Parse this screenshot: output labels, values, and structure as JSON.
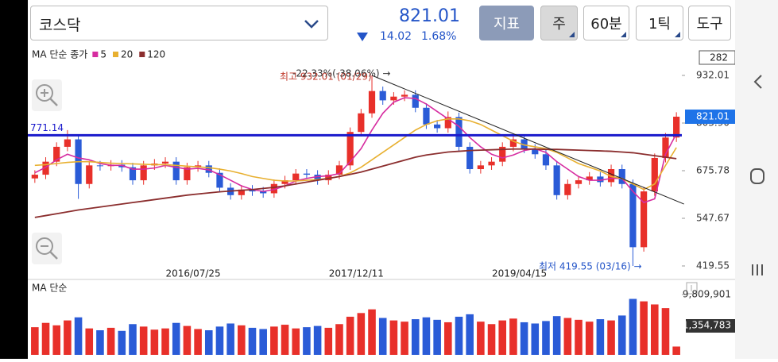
{
  "header": {
    "market": "코스닥",
    "price": 821.01,
    "change": 14.02,
    "change_rate": "1.68%",
    "buttons": [
      "지표",
      "주",
      "60분",
      "1틱",
      "도구"
    ]
  },
  "chart_data": [
    {
      "type": "candlestick",
      "legend_title": "MA 단순 종가",
      "period_count": 282,
      "up_color": "#e8302a",
      "down_color": "#2a5bd7",
      "categories": [
        null,
        null,
        null,
        null,
        null,
        null,
        null,
        null,
        null,
        null,
        null,
        null,
        null,
        null,
        null,
        "2016/07/25",
        null,
        null,
        null,
        null,
        null,
        null,
        null,
        null,
        null,
        null,
        null,
        null,
        null,
        null,
        "2017/12/11",
        null,
        null,
        null,
        null,
        null,
        null,
        null,
        null,
        null,
        null,
        null,
        null,
        null,
        null,
        "2019/04/15",
        null,
        null,
        null,
        null,
        null,
        null,
        null,
        null,
        null,
        null,
        null,
        null,
        null,
        null
      ],
      "open": [
        655,
        665,
        700,
        740,
        760,
        640,
        690,
        688,
        692,
        685,
        650,
        690,
        695,
        700,
        650,
        685,
        690,
        670,
        630,
        610,
        625,
        620,
        615,
        640,
        650,
        668,
        665,
        650,
        665,
        690,
        780,
        830,
        890,
        865,
        875,
        880,
        845,
        800,
        790,
        820,
        740,
        680,
        690,
        700,
        740,
        760,
        735,
        720,
        690,
        610,
        640,
        650,
        660,
        645,
        680,
        640,
        470,
        620,
        710,
        765
      ],
      "high": [
        677,
        712,
        752,
        785,
        772,
        702,
        702,
        704,
        704,
        697,
        702,
        707,
        712,
        712,
        697,
        702,
        702,
        682,
        642,
        637,
        637,
        632,
        652,
        662,
        680,
        680,
        677,
        677,
        702,
        792,
        842,
        932.01,
        902,
        887,
        892,
        892,
        857,
        812,
        835,
        832,
        752,
        702,
        712,
        752,
        772,
        772,
        747,
        732,
        702,
        652,
        662,
        672,
        672,
        692,
        692,
        652,
        632,
        722,
        777,
        833
      ],
      "low": [
        643,
        653,
        688,
        728,
        600,
        628,
        676,
        676,
        673,
        638,
        638,
        678,
        683,
        638,
        638,
        673,
        658,
        618,
        598,
        598,
        608,
        603,
        603,
        628,
        638,
        653,
        638,
        638,
        653,
        678,
        768,
        818,
        853,
        853,
        863,
        833,
        788,
        778,
        778,
        728,
        668,
        668,
        678,
        688,
        728,
        723,
        708,
        678,
        598,
        598,
        628,
        638,
        633,
        633,
        628,
        419.55,
        458,
        608,
        698,
        753
      ],
      "close": [
        665,
        700,
        740,
        760,
        640,
        690,
        688,
        692,
        685,
        650,
        690,
        695,
        700,
        650,
        685,
        690,
        670,
        630,
        610,
        625,
        620,
        615,
        640,
        650,
        668,
        665,
        650,
        665,
        690,
        780,
        830,
        890,
        865,
        875,
        880,
        845,
        800,
        790,
        820,
        740,
        680,
        690,
        700,
        740,
        760,
        735,
        720,
        690,
        610,
        640,
        650,
        660,
        645,
        680,
        640,
        470,
        620,
        710,
        765,
        821.01
      ],
      "series": [
        {
          "name": "5",
          "color": "#d62ca0",
          "values": [
            670,
            685,
            705,
            720,
            710,
            705,
            695,
            690,
            690,
            680,
            680,
            683,
            690,
            685,
            680,
            682,
            678,
            665,
            650,
            635,
            625,
            620,
            625,
            635,
            648,
            655,
            660,
            662,
            668,
            700,
            735,
            785,
            830,
            860,
            872,
            870,
            855,
            835,
            815,
            795,
            765,
            740,
            720,
            710,
            718,
            730,
            735,
            725,
            700,
            680,
            660,
            650,
            650,
            655,
            655,
            620,
            590,
            600,
            720,
            775
          ]
        },
        {
          "name": "20",
          "color": "#e8b030",
          "values": [
            690,
            692,
            695,
            698,
            700,
            700,
            698,
            696,
            695,
            694,
            693,
            692,
            692,
            690,
            688,
            686,
            684,
            680,
            675,
            668,
            660,
            655,
            650,
            648,
            648,
            650,
            652,
            655,
            660,
            670,
            685,
            705,
            725,
            745,
            765,
            785,
            800,
            810,
            815,
            815,
            810,
            800,
            785,
            770,
            755,
            745,
            740,
            735,
            725,
            710,
            695,
            685,
            675,
            660,
            655,
            640,
            625,
            640,
            690,
            738
          ]
        },
        {
          "name": "120",
          "color": "#8b2e2e",
          "values": [
            550,
            555,
            560,
            565,
            570,
            574,
            578,
            582,
            586,
            590,
            594,
            598,
            602,
            606,
            610,
            613,
            616,
            619,
            621,
            623,
            625,
            628,
            631,
            635,
            640,
            645,
            650,
            655,
            660,
            666,
            672,
            680,
            688,
            696,
            704,
            712,
            718,
            722,
            726,
            728,
            730,
            731,
            732,
            733,
            734,
            734,
            734,
            733,
            733,
            732,
            731,
            730,
            729,
            728,
            726,
            724,
            720,
            716,
            712,
            708
          ]
        }
      ],
      "ylim": [
        387.5,
        1002.5
      ],
      "yticks": [
        419.55,
        547.67,
        675.78,
        {
          "value": 803.9,
          "label": "803.90"
        },
        932.01
      ],
      "grid": false,
      "reference_line": {
        "value": 771.14,
        "color": "#1a1acc"
      },
      "trendline": {
        "x": [
          31,
          59.7
        ],
        "y": [
          932.01,
          586
        ]
      },
      "annotations": {
        "high": "최고 932.01 (01/29)",
        "change": "-22.33%(-38.06%) →",
        "low": "최저 419.55 (03/16) →"
      }
    },
    {
      "type": "bar",
      "title": "MA 단순",
      "up_color": "#e8302a",
      "down_color": "#2a5bd7",
      "values": [
        4500000,
        5200000,
        4800000,
        5600000,
        6100000,
        4300000,
        4000000,
        4400000,
        3900000,
        5000000,
        4600000,
        4100000,
        4300000,
        5200000,
        4700000,
        4200000,
        4000000,
        4600000,
        5100000,
        4800000,
        4400000,
        4200000,
        4600000,
        4900000,
        4300000,
        4500000,
        4700000,
        4400000,
        5000000,
        6200000,
        6800000,
        7400000,
        6000000,
        5600000,
        5400000,
        5800000,
        6100000,
        5700000,
        5300000,
        6200000,
        6600000,
        5400000,
        5000000,
        5600000,
        5900000,
        5300000,
        5100000,
        5500000,
        6300000,
        6000000,
        5700000,
        5400000,
        5800000,
        5600000,
        6400000,
        9100000,
        8700000,
        8200000,
        7600000,
        1354783
      ],
      "value_labels": [
        null,
        null,
        null,
        null,
        null,
        null,
        null,
        null,
        null,
        null,
        null,
        null,
        null,
        null,
        null,
        null,
        null,
        null,
        null,
        null,
        null,
        null,
        null,
        null,
        null,
        null,
        null,
        null,
        null,
        null,
        null,
        null,
        null,
        null,
        null,
        null,
        null,
        null,
        null,
        null,
        null,
        null,
        null,
        null,
        null,
        null,
        null,
        null,
        null,
        null,
        null,
        null,
        null,
        null,
        null,
        null,
        null,
        null,
        null,
        "1,354,783"
      ],
      "ylim": [
        0,
        9809901
      ],
      "yticks": [
        {
          "value": 9809901,
          "label": "9,809,901"
        }
      ]
    }
  ]
}
